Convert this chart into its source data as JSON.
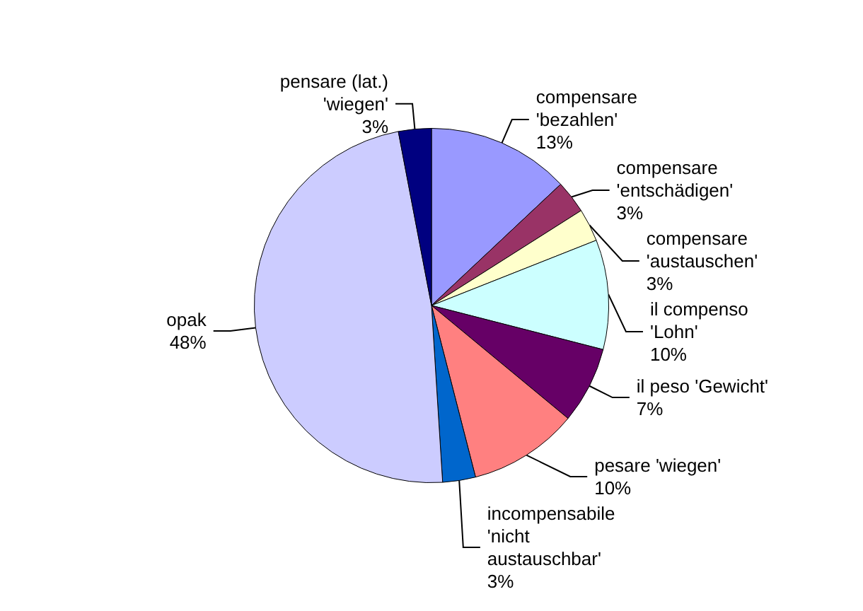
{
  "chart_data": {
    "type": "pie",
    "categories": [
      "compensare\n'bezahlen'",
      "compensare\n'entschädigen'",
      "compensare\n'austauschen'",
      "il compenso\n'Lohn'",
      "il peso 'Gewicht'",
      "pesare 'wiegen'",
      "incompensabile\n'nicht\naustauschbar'",
      "opak",
      "pensare (lat.)\n'wiegen'"
    ],
    "values": [
      13,
      3,
      3,
      10,
      7,
      10,
      3,
      48,
      3
    ],
    "value_labels": [
      "13%",
      "3%",
      "3%",
      "10%",
      "7%",
      "10%",
      "3%",
      "48%",
      "3%"
    ],
    "colors": [
      "#9999ff",
      "#993366",
      "#ffffcc",
      "#ccffff",
      "#660066",
      "#ff8080",
      "#0066cc",
      "#ccccff",
      "#000080"
    ],
    "legend": false
  }
}
